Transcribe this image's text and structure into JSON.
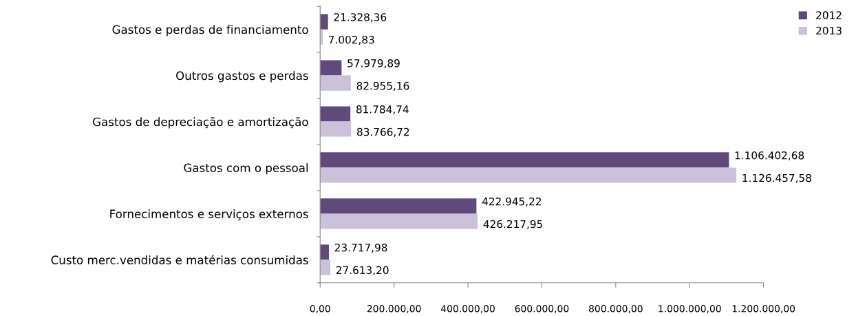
{
  "chart_data": {
    "type": "bar",
    "orientation": "horizontal",
    "categories": [
      "Gastos e perdas de financiamento",
      "Outros gastos e perdas",
      "Gastos de depreciação e amortização",
      "Gastos com o pessoal",
      "Fornecimentos e serviços externos",
      "Custo merc.vendidas e matérias consumidas"
    ],
    "series": [
      {
        "name": "2012",
        "color": "#604a7b",
        "values": [
          21328.36,
          57979.89,
          81784.74,
          1106402.68,
          422945.22,
          23717.98
        ],
        "value_labels": [
          "21.328,36",
          "57.979,89",
          "81.784,74",
          "1.106.402,68",
          "422.945,22",
          "23.717,98"
        ]
      },
      {
        "name": "2013",
        "color": "#ccc1da",
        "values": [
          7002.83,
          82955.16,
          83766.72,
          1126457.58,
          426217.95,
          27613.2
        ],
        "value_labels": [
          "7.002,83",
          "82.955,16",
          "83.766,72",
          "1.126.457,58",
          "426.217,95",
          "27.613,20"
        ]
      }
    ],
    "xlim": [
      0,
      1200000
    ],
    "xticks": [
      {
        "value": 0,
        "label": "0,00"
      },
      {
        "value": 200000,
        "label": "200.000,00"
      },
      {
        "value": 400000,
        "label": "400.000,00"
      },
      {
        "value": 600000,
        "label": "600.000,00"
      },
      {
        "value": 800000,
        "label": "800.000,00"
      },
      {
        "value": 1000000,
        "label": "1.000.000,00"
      },
      {
        "value": 1200000,
        "label": "1.200.000,00"
      }
    ],
    "grid": false,
    "legend": "top right"
  }
}
